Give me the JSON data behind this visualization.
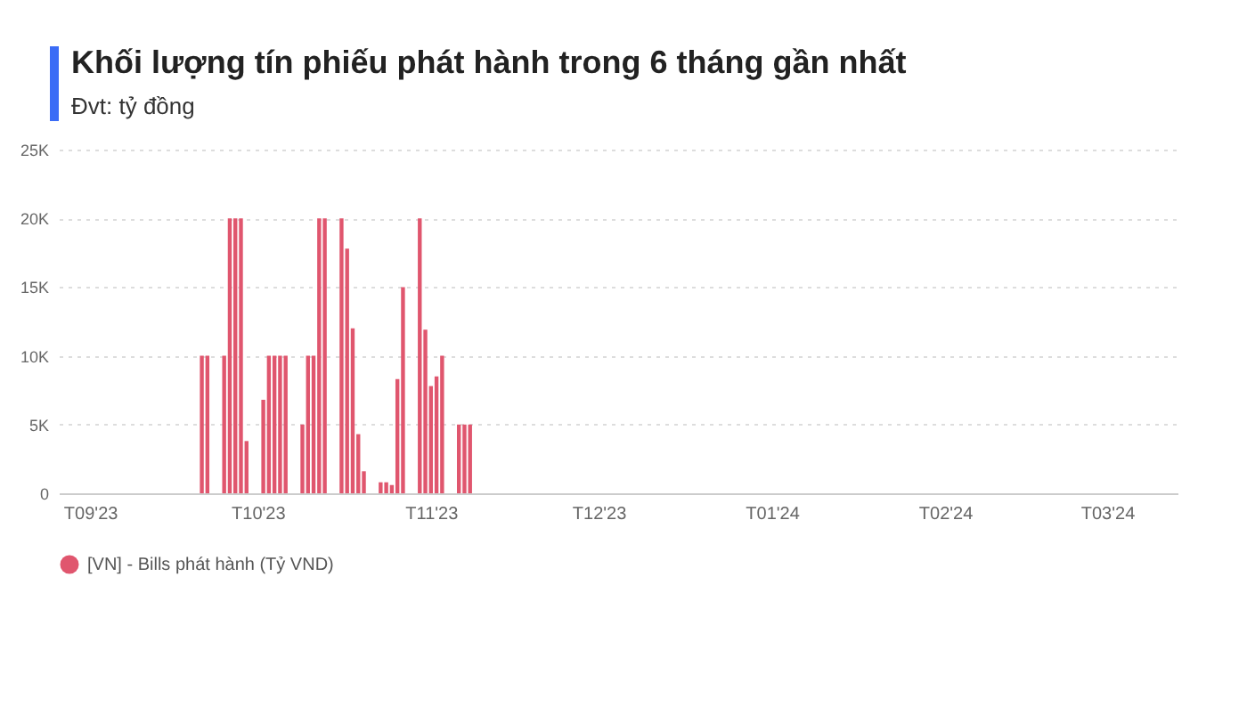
{
  "chart_data": {
    "type": "bar",
    "title": "Khối lượng tín phiếu phát hành trong 6 tháng gần nhất",
    "subtitle": "Đvt: tỷ đồng",
    "x": [
      "2023-09-21",
      "2023-09-22",
      "2023-09-25",
      "2023-09-26",
      "2023-09-27",
      "2023-09-28",
      "2023-09-29",
      "2023-10-02",
      "2023-10-03",
      "2023-10-04",
      "2023-10-05",
      "2023-10-06",
      "2023-10-09",
      "2023-10-10",
      "2023-10-11",
      "2023-10-12",
      "2023-10-13",
      "2023-10-16",
      "2023-10-17",
      "2023-10-18",
      "2023-10-19",
      "2023-10-20",
      "2023-10-23",
      "2023-10-24",
      "2023-10-25",
      "2023-10-26",
      "2023-10-27",
      "2023-10-30",
      "2023-10-31",
      "2023-11-01",
      "2023-11-02",
      "2023-11-03",
      "2023-11-06",
      "2023-11-07",
      "2023-11-08"
    ],
    "series": [
      {
        "name": "[VN] - Bills phát hành (Tỷ VND)",
        "color": "#e0566e",
        "values": [
          10000,
          10000,
          10000,
          20000,
          20000,
          20000,
          3800,
          6800,
          10000,
          10000,
          10000,
          10000,
          5000,
          10000,
          10000,
          20000,
          20000,
          20000,
          17800,
          12000,
          4300,
          1600,
          800,
          800,
          600,
          8300,
          15000,
          20000,
          11900,
          7800,
          8500,
          10000,
          5000,
          5000,
          5000
        ]
      }
    ],
    "xlim": [
      "2023-08-28",
      "2024-03-12"
    ],
    "xticks": [
      {
        "value": "2023-09-01",
        "label": "T09'23"
      },
      {
        "value": "2023-10-01",
        "label": "T10'23"
      },
      {
        "value": "2023-11-01",
        "label": "T11'23"
      },
      {
        "value": "2023-12-01",
        "label": "T12'23"
      },
      {
        "value": "2024-01-01",
        "label": "T01'24"
      },
      {
        "value": "2024-02-01",
        "label": "T02'24"
      },
      {
        "value": "2024-03-01",
        "label": "T03'24"
      }
    ],
    "ylim": [
      0,
      25000
    ],
    "yticks": [
      0,
      {
        "value": 5000,
        "label": "5K"
      },
      {
        "value": 10000,
        "label": "10K"
      },
      {
        "value": 15000,
        "label": "15K"
      },
      {
        "value": 20000,
        "label": "20K"
      },
      {
        "value": 25000,
        "label": "25K"
      }
    ],
    "grid": "y",
    "legend": "bottom"
  }
}
